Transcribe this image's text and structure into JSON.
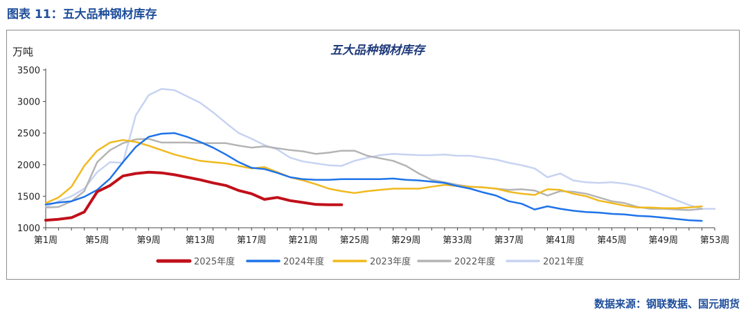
{
  "caption": "图表 11：五大品种钢材库存",
  "source": "数据来源：钢联数据、国元期货",
  "chart_data": {
    "type": "line",
    "title": "五大品种钢材库存",
    "ylabel": "万吨",
    "ylim": [
      1000,
      3500
    ],
    "yticks": [
      1000,
      1500,
      2000,
      2500,
      3000,
      3500
    ],
    "xlim": [
      1,
      53
    ],
    "xticks": [
      1,
      5,
      9,
      13,
      17,
      21,
      25,
      29,
      33,
      37,
      41,
      45,
      49,
      53
    ],
    "xtick_labels": [
      "第1周",
      "第5周",
      "第9周",
      "第13周",
      "第17周",
      "第21周",
      "第25周",
      "第29周",
      "第33周",
      "第37周",
      "第41周",
      "第45周",
      "第49周",
      "第53周"
    ],
    "grid": false,
    "legend_position": "bottom",
    "series": [
      {
        "name": "2025年度",
        "color": "#c0101a",
        "width": 4,
        "x": [
          1,
          2,
          3,
          4,
          5,
          6,
          7,
          8,
          9,
          10,
          11,
          12,
          13,
          14,
          15,
          16,
          17,
          18,
          19,
          20,
          21,
          22,
          23,
          24
        ],
        "y": [
          1120,
          1135,
          1160,
          1250,
          1570,
          1670,
          1820,
          1860,
          1880,
          1870,
          1840,
          1800,
          1760,
          1710,
          1670,
          1590,
          1540,
          1450,
          1480,
          1430,
          1400,
          1370,
          1365,
          1365
        ]
      },
      {
        "name": "2024年度",
        "color": "#1e73e8",
        "width": 2.5,
        "x": [
          1,
          2,
          3,
          4,
          5,
          6,
          7,
          8,
          9,
          10,
          11,
          12,
          13,
          14,
          15,
          16,
          17,
          18,
          19,
          20,
          21,
          22,
          23,
          24,
          25,
          26,
          27,
          28,
          29,
          30,
          31,
          32,
          33,
          34,
          35,
          36,
          37,
          38,
          39,
          40,
          41,
          42,
          43,
          44,
          45,
          46,
          47,
          48,
          49,
          50,
          51,
          52
        ],
        "y": [
          1370,
          1400,
          1420,
          1490,
          1600,
          1780,
          2040,
          2280,
          2440,
          2490,
          2500,
          2440,
          2360,
          2270,
          2160,
          2040,
          1950,
          1930,
          1870,
          1800,
          1770,
          1760,
          1760,
          1770,
          1770,
          1770,
          1770,
          1780,
          1760,
          1750,
          1730,
          1710,
          1660,
          1620,
          1560,
          1510,
          1420,
          1380,
          1290,
          1340,
          1300,
          1270,
          1250,
          1240,
          1220,
          1210,
          1190,
          1180,
          1160,
          1140,
          1120,
          1110
        ]
      },
      {
        "name": "2023年度",
        "color": "#f0b91e",
        "width": 2.5,
        "x": [
          1,
          2,
          3,
          4,
          5,
          6,
          7,
          8,
          9,
          10,
          11,
          12,
          13,
          14,
          15,
          16,
          17,
          18,
          19,
          20,
          21,
          22,
          23,
          24,
          25,
          26,
          27,
          28,
          29,
          30,
          31,
          32,
          33,
          34,
          35,
          36,
          37,
          38,
          39,
          40,
          41,
          42,
          43,
          44,
          45,
          46,
          47,
          48,
          49,
          50,
          51,
          52
        ],
        "y": [
          1390,
          1480,
          1650,
          1980,
          2220,
          2350,
          2390,
          2360,
          2300,
          2230,
          2160,
          2110,
          2060,
          2040,
          2020,
          1980,
          1940,
          1960,
          1880,
          1800,
          1750,
          1690,
          1620,
          1580,
          1550,
          1580,
          1600,
          1620,
          1620,
          1620,
          1650,
          1680,
          1660,
          1650,
          1640,
          1620,
          1570,
          1540,
          1520,
          1610,
          1600,
          1540,
          1500,
          1430,
          1390,
          1350,
          1320,
          1320,
          1310,
          1310,
          1320,
          1340
        ]
      },
      {
        "name": "2022年度",
        "color": "#b4b4b4",
        "width": 2.5,
        "x": [
          1,
          2,
          3,
          4,
          5,
          6,
          7,
          8,
          9,
          10,
          11,
          12,
          13,
          14,
          15,
          16,
          17,
          18,
          19,
          20,
          21,
          22,
          23,
          24,
          25,
          26,
          27,
          28,
          29,
          30,
          31,
          32,
          33,
          34,
          35,
          36,
          37,
          38,
          39,
          40,
          41,
          42,
          43,
          44,
          45,
          46,
          47,
          48,
          49,
          50,
          51,
          52
        ],
        "y": [
          1320,
          1330,
          1420,
          1580,
          2040,
          2230,
          2340,
          2400,
          2410,
          2350,
          2350,
          2350,
          2340,
          2340,
          2340,
          2300,
          2270,
          2290,
          2260,
          2230,
          2210,
          2170,
          2190,
          2220,
          2220,
          2140,
          2100,
          2060,
          1980,
          1860,
          1760,
          1720,
          1680,
          1650,
          1640,
          1620,
          1600,
          1610,
          1590,
          1510,
          1580,
          1570,
          1540,
          1480,
          1420,
          1390,
          1330,
          1300,
          1300,
          1290,
          1280,
          1300
        ]
      },
      {
        "name": "2021年度",
        "color": "#c6d3f2",
        "width": 2.5,
        "x": [
          1,
          2,
          3,
          4,
          5,
          6,
          7,
          8,
          9,
          10,
          11,
          12,
          13,
          14,
          15,
          16,
          17,
          18,
          19,
          20,
          21,
          22,
          23,
          24,
          25,
          26,
          27,
          28,
          29,
          30,
          31,
          32,
          33,
          34,
          35,
          36,
          37,
          38,
          39,
          40,
          41,
          42,
          43,
          44,
          45,
          46,
          47,
          48,
          49,
          50,
          51,
          52,
          53
        ],
        "y": [
          1330,
          1420,
          1500,
          1620,
          1880,
          2040,
          2030,
          2780,
          3100,
          3200,
          3180,
          3080,
          2980,
          2830,
          2660,
          2500,
          2410,
          2310,
          2240,
          2110,
          2050,
          2020,
          1990,
          1980,
          2060,
          2110,
          2150,
          2170,
          2160,
          2150,
          2150,
          2160,
          2140,
          2140,
          2110,
          2080,
          2030,
          1990,
          1940,
          1800,
          1860,
          1750,
          1720,
          1710,
          1720,
          1700,
          1660,
          1600,
          1520,
          1440,
          1360,
          1300,
          1300
        ]
      }
    ]
  }
}
